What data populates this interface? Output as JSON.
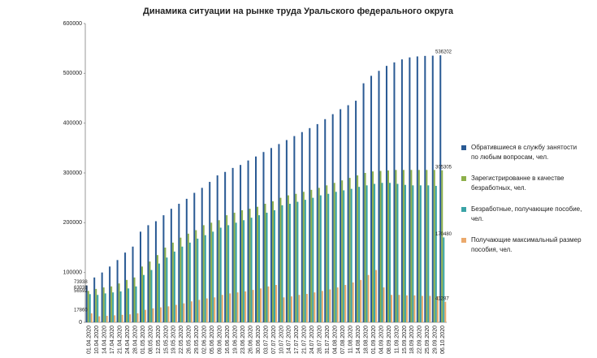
{
  "chart_data": {
    "type": "bar",
    "title": "Динамика ситуации на рынке труда Уральского федерального округа",
    "categories": [
      "01.04.2020",
      "10.04.2020",
      "14.04.2020",
      "17.04.2020",
      "21.04.2020",
      "24.04.2020",
      "28.04.2020",
      "01.05.2020",
      "08.05.2020",
      "12.05.2020",
      "15.05.2020",
      "19.05.2020",
      "22.05.2020",
      "26.05.2020",
      "29.05.2020",
      "02.06.2020",
      "05.06.2020",
      "09.06.2020",
      "16.06.2020",
      "19.06.2020",
      "23.06.2020",
      "26.06.2020",
      "30.06.2020",
      "03.07.2020",
      "07.07.2020",
      "10.07.2020",
      "14.07.2020",
      "17.07.2020",
      "21.07.2020",
      "24.07.2020",
      "28.07.2020",
      "31.07.2020",
      "04.08.2020",
      "07.08.2020",
      "11.08.2020",
      "14.08.2020",
      "18.08.2020",
      "01.09.2020",
      "04.09.2020",
      "08.09.2020",
      "11.09.2020",
      "15.09.2020",
      "18.09.2020",
      "22.09.2020",
      "25.09.2020",
      "29.09.2020",
      "06.10.2020"
    ],
    "series": [
      {
        "name": "Обратившиеся в службу занятости по любым вопросам, чел.",
        "color": "#2a5a94",
        "values": [
          73938,
          90000,
          100000,
          112000,
          125000,
          140000,
          152000,
          182000,
          195000,
          203000,
          215000,
          228000,
          238000,
          248000,
          260000,
          270000,
          282000,
          295000,
          302000,
          310000,
          316000,
          325000,
          333000,
          342000,
          350000,
          358000,
          366000,
          374000,
          382000,
          390000,
          398000,
          408000,
          418000,
          428000,
          436000,
          445000,
          480000,
          495000,
          505000,
          515000,
          522000,
          528000,
          532000,
          534000,
          535000,
          535500,
          536202
        ]
      },
      {
        "name": "Зарегистрированне в качестве безработных, чел.",
        "color": "#8db04a",
        "values": [
          63038,
          67000,
          70000,
          72000,
          78000,
          85000,
          90000,
          112000,
          122000,
          135000,
          150000,
          160000,
          170000,
          178000,
          185000,
          195000,
          200000,
          205000,
          215000,
          220000,
          225000,
          228000,
          232000,
          238000,
          243000,
          250000,
          255000,
          258000,
          262000,
          266000,
          270000,
          275000,
          280000,
          285000,
          290000,
          295000,
          300000,
          303000,
          304000,
          305000,
          306000,
          306000,
          306000,
          306000,
          306000,
          306000,
          305305
        ]
      },
      {
        "name": "Безработные, получающие пособие, чел.",
        "color": "#3aa3a6",
        "values": [
          56592,
          55000,
          58000,
          60000,
          62000,
          68000,
          72000,
          95000,
          105000,
          118000,
          130000,
          142000,
          152000,
          160000,
          168000,
          175000,
          182000,
          190000,
          195000,
          200000,
          205000,
          210000,
          215000,
          220000,
          225000,
          235000,
          238000,
          242000,
          246000,
          250000,
          255000,
          258000,
          262000,
          265000,
          268000,
          272000,
          275000,
          278000,
          280000,
          280000,
          278000,
          276000,
          275000,
          275000,
          275000,
          274000,
          170480
        ]
      },
      {
        "name": "Получающие максимальный размер пособия, чел.",
        "color": "#eba96c",
        "values": [
          17860,
          12000,
          13000,
          14000,
          15000,
          16000,
          18000,
          25000,
          28000,
          30000,
          32000,
          35000,
          38000,
          42000,
          45000,
          48000,
          50000,
          55000,
          58000,
          60000,
          62000,
          65000,
          68000,
          72000,
          75000,
          50000,
          52000,
          55000,
          57000,
          60000,
          63000,
          66000,
          70000,
          75000,
          80000,
          85000,
          95000,
          105000,
          70000,
          55000,
          55000,
          54000,
          54000,
          53000,
          53000,
          52000,
          41287
        ]
      }
    ],
    "ylim": [
      0,
      600000
    ],
    "yticks": [
      0,
      100000,
      200000,
      300000,
      400000,
      500000,
      600000
    ],
    "grid": false,
    "legend": "right"
  }
}
